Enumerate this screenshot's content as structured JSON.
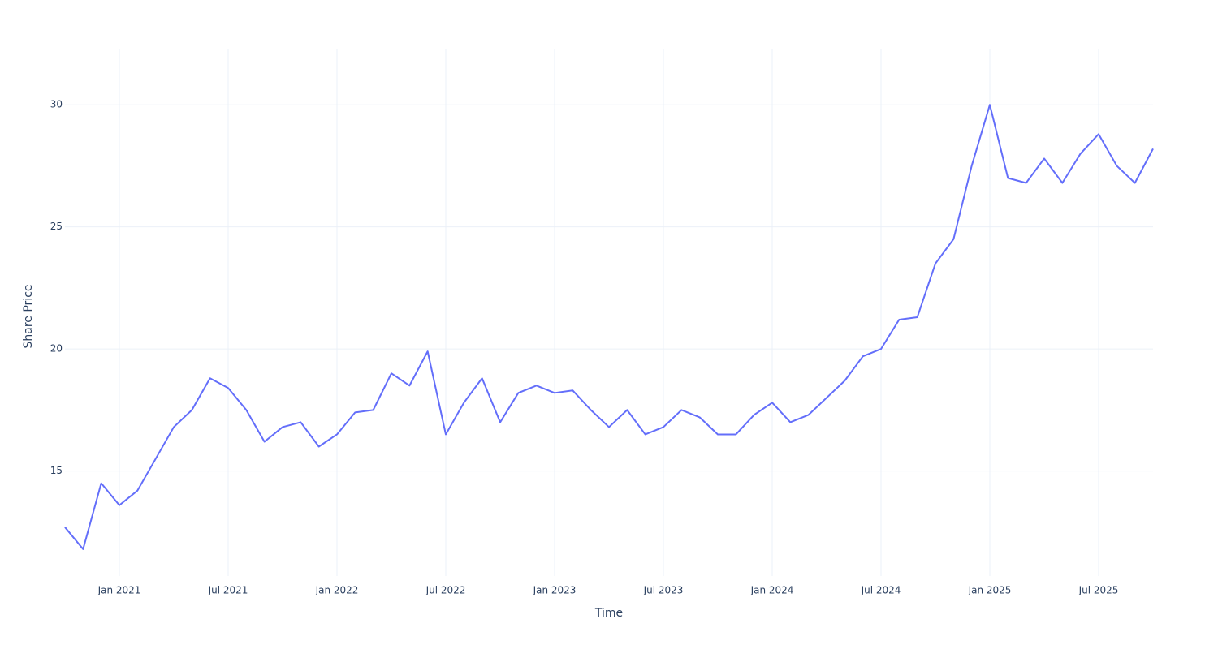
{
  "chart_data": {
    "type": "line",
    "x_label": "Time",
    "y_label": "Share Price",
    "x": [
      "2020-10",
      "2020-11",
      "2020-12",
      "2021-01",
      "2021-02",
      "2021-03",
      "2021-04",
      "2021-05",
      "2021-06",
      "2021-07",
      "2021-08",
      "2021-09",
      "2021-10",
      "2021-11",
      "2021-12",
      "2022-01",
      "2022-02",
      "2022-03",
      "2022-04",
      "2022-05",
      "2022-06",
      "2022-07",
      "2022-08",
      "2022-09",
      "2022-10",
      "2022-11",
      "2022-12",
      "2023-01",
      "2023-02",
      "2023-03",
      "2023-04",
      "2023-05",
      "2023-06",
      "2023-07",
      "2023-08",
      "2023-09",
      "2023-10",
      "2023-11",
      "2023-12",
      "2024-01",
      "2024-02",
      "2024-03",
      "2024-04",
      "2024-05",
      "2024-06",
      "2024-07",
      "2024-08",
      "2024-09",
      "2024-10",
      "2024-11",
      "2024-12",
      "2025-01",
      "2025-02",
      "2025-03",
      "2025-04",
      "2025-05",
      "2025-06",
      "2025-07",
      "2025-08",
      "2025-09",
      "2025-10"
    ],
    "series": [
      {
        "name": "Share Price",
        "color": "#636efa",
        "values": [
          12.7,
          11.8,
          14.5,
          13.6,
          14.2,
          15.5,
          16.8,
          17.5,
          18.8,
          18.4,
          17.5,
          16.2,
          16.8,
          17.0,
          16.0,
          16.5,
          17.4,
          17.5,
          19.0,
          18.5,
          19.9,
          16.5,
          17.8,
          18.8,
          17.0,
          18.2,
          18.5,
          18.2,
          18.3,
          17.5,
          16.8,
          17.5,
          16.5,
          16.8,
          17.5,
          17.2,
          16.5,
          16.5,
          17.3,
          17.8,
          17.0,
          17.3,
          18.0,
          18.7,
          19.7,
          20.0,
          21.2,
          21.3,
          23.5,
          24.5,
          27.5,
          30.0,
          27.0,
          26.8,
          27.8,
          26.8,
          28.0,
          28.8,
          27.5,
          26.8,
          28.2
        ]
      }
    ],
    "xlim": [
      "2020-10",
      "2025-10"
    ],
    "xticks": [
      {
        "value": "2021-01",
        "label": "Jan 2021"
      },
      {
        "value": "2021-07",
        "label": "Jul 2021"
      },
      {
        "value": "2022-01",
        "label": "Jan 2022"
      },
      {
        "value": "2022-07",
        "label": "Jul 2022"
      },
      {
        "value": "2023-01",
        "label": "Jan 2023"
      },
      {
        "value": "2023-07",
        "label": "Jul 2023"
      },
      {
        "value": "2024-01",
        "label": "Jan 2024"
      },
      {
        "value": "2024-07",
        "label": "Jul 2024"
      },
      {
        "value": "2025-01",
        "label": "Jan 2025"
      },
      {
        "value": "2025-07",
        "label": "Jul 2025"
      }
    ],
    "ylim": [
      10.7,
      32.3
    ],
    "yticks": [
      15,
      20,
      25,
      30
    ],
    "grid": true
  }
}
